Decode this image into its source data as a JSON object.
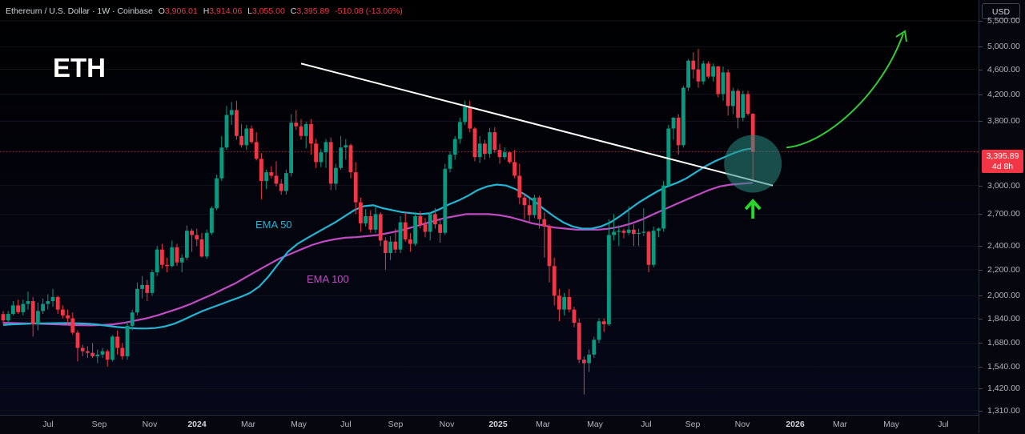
{
  "header": {
    "symbol": "Ethereum / U.S. Dollar · 1W · Coinbase",
    "open_key": "O",
    "open": "3,906.01",
    "high_key": "H",
    "high": "3,914.06",
    "low_key": "L",
    "low": "3,055.00",
    "close_key": "C",
    "close": "3,395.89",
    "change": "-510.08 (-13.06%)"
  },
  "currency": "USD",
  "last_price": {
    "price": "3,395.89",
    "countdown": "4d 8h"
  },
  "colors": {
    "up": "#089981",
    "down": "#f23645",
    "ema50": "#22b5d4",
    "ema100": "#c24bc4",
    "trendline": "#ffffff",
    "arrow_up": "#2bd62b",
    "arrow_curve": "#36c936",
    "highlight": "#2a8a80"
  },
  "chart_data": {
    "type": "candlestick",
    "title": "ETH",
    "symbol": "Ethereum / U.S. Dollar",
    "interval": "1W",
    "exchange": "Coinbase",
    "y_scale": "log",
    "ylim": [
      1290,
      5800
    ],
    "y_ticks": [
      5500,
      5000,
      4600,
      4200,
      3800,
      3400,
      3000,
      2700,
      2400,
      2200,
      2000,
      1840,
      1680,
      1540,
      1420,
      1310
    ],
    "y_tick_labels": [
      "5,500.00",
      "5,000.00",
      "4,600.00",
      "4,200.00",
      "3,800.00",
      "",
      "3,000.00",
      "2,700.00",
      "2,400.00",
      "2,200.00",
      "2,000.00",
      "1,840.00",
      "1,680.00",
      "1,540.00",
      "1,420.00",
      "1,310.00"
    ],
    "x_ticks": [
      {
        "label": "Jul",
        "bold": false
      },
      {
        "label": "Sep",
        "bold": false
      },
      {
        "label": "Nov",
        "bold": false
      },
      {
        "label": "2024",
        "bold": true
      },
      {
        "label": "Mar",
        "bold": false
      },
      {
        "label": "May",
        "bold": false
      },
      {
        "label": "Jul",
        "bold": false
      },
      {
        "label": "Sep",
        "bold": false
      },
      {
        "label": "Nov",
        "bold": false
      },
      {
        "label": "2025",
        "bold": true
      },
      {
        "label": "Mar",
        "bold": false
      },
      {
        "label": "May",
        "bold": false
      },
      {
        "label": "Jul",
        "bold": false
      },
      {
        "label": "Sep",
        "bold": false
      },
      {
        "label": "Nov",
        "bold": false
      },
      {
        "label": "2026",
        "bold": true
      },
      {
        "label": "Mar",
        "bold": false
      },
      {
        "label": "May",
        "bold": false
      },
      {
        "label": "Jul",
        "bold": false
      }
    ],
    "candles": [
      [
        1869,
        1890,
        1800,
        1826
      ],
      [
        1826,
        1890,
        1800,
        1870
      ],
      [
        1870,
        1960,
        1860,
        1930
      ],
      [
        1930,
        1970,
        1870,
        1882
      ],
      [
        1882,
        1970,
        1860,
        1940
      ],
      [
        1940,
        2030,
        1900,
        1960
      ],
      [
        1960,
        1990,
        1720,
        1800
      ],
      [
        1800,
        1950,
        1760,
        1890
      ],
      [
        1890,
        1980,
        1870,
        1940
      ],
      [
        1940,
        2010,
        1900,
        1960
      ],
      [
        1960,
        2050,
        1920,
        1990
      ],
      [
        1990,
        2000,
        1870,
        1900
      ],
      [
        1900,
        1930,
        1840,
        1860
      ],
      [
        1860,
        1900,
        1800,
        1840
      ],
      [
        1840,
        1880,
        1730,
        1745
      ],
      [
        1745,
        1760,
        1570,
        1650
      ],
      [
        1650,
        1670,
        1600,
        1630
      ],
      [
        1630,
        1660,
        1590,
        1620
      ],
      [
        1620,
        1680,
        1590,
        1600
      ],
      [
        1600,
        1640,
        1560,
        1610
      ],
      [
        1610,
        1650,
        1590,
        1630
      ],
      [
        1630,
        1640,
        1540,
        1580
      ],
      [
        1580,
        1730,
        1570,
        1720
      ],
      [
        1720,
        1760,
        1610,
        1650
      ],
      [
        1650,
        1680,
        1580,
        1600
      ],
      [
        1600,
        1820,
        1580,
        1790
      ],
      [
        1790,
        1900,
        1760,
        1880
      ],
      [
        1880,
        2100,
        1860,
        2050
      ],
      [
        2050,
        2150,
        1980,
        2080
      ],
      [
        2080,
        2120,
        1960,
        2020
      ],
      [
        2020,
        2200,
        2000,
        2180
      ],
      [
        2180,
        2400,
        2150,
        2370
      ],
      [
        2370,
        2420,
        2210,
        2240
      ],
      [
        2240,
        2300,
        2180,
        2230
      ],
      [
        2230,
        2450,
        2220,
        2390
      ],
      [
        2390,
        2420,
        2230,
        2260
      ],
      [
        2260,
        2330,
        2180,
        2300
      ],
      [
        2300,
        2590,
        2280,
        2540
      ],
      [
        2540,
        2560,
        2350,
        2500
      ],
      [
        2500,
        2560,
        2400,
        2460
      ],
      [
        2460,
        2520,
        2300,
        2310
      ],
      [
        2310,
        2550,
        2290,
        2520
      ],
      [
        2520,
        2780,
        2500,
        2760
      ],
      [
        2760,
        3120,
        2740,
        3080
      ],
      [
        3080,
        3600,
        3050,
        3450
      ],
      [
        3450,
        4020,
        3420,
        3890
      ],
      [
        3890,
        4080,
        3750,
        3960
      ],
      [
        3960,
        4100,
        3550,
        3600
      ],
      [
        3600,
        3760,
        3450,
        3480
      ],
      [
        3480,
        3750,
        3420,
        3700
      ],
      [
        3700,
        3740,
        3500,
        3520
      ],
      [
        3520,
        3650,
        3290,
        3310
      ],
      [
        3310,
        3380,
        2850,
        3050
      ],
      [
        3050,
        3180,
        2960,
        3150
      ],
      [
        3150,
        3220,
        3080,
        3110
      ],
      [
        3110,
        3280,
        2990,
        3020
      ],
      [
        3020,
        3070,
        2900,
        2940
      ],
      [
        2940,
        3180,
        2900,
        3140
      ],
      [
        3140,
        3900,
        3100,
        3780
      ],
      [
        3780,
        3960,
        3680,
        3730
      ],
      [
        3730,
        3830,
        3550,
        3600
      ],
      [
        3600,
        3790,
        3440,
        3760
      ],
      [
        3760,
        3830,
        3360,
        3500
      ],
      [
        3500,
        3560,
        3200,
        3270
      ],
      [
        3270,
        3430,
        3210,
        3390
      ],
      [
        3390,
        3560,
        3200,
        3520
      ],
      [
        3520,
        3580,
        2950,
        3020
      ],
      [
        3020,
        3250,
        2950,
        3200
      ],
      [
        3200,
        3600,
        3180,
        3450
      ],
      [
        3450,
        3560,
        3300,
        3480
      ],
      [
        3480,
        3500,
        3080,
        3150
      ],
      [
        3150,
        3270,
        2700,
        2820
      ],
      [
        2820,
        2870,
        2530,
        2610
      ],
      [
        2610,
        2750,
        2580,
        2680
      ],
      [
        2680,
        2740,
        2520,
        2550
      ],
      [
        2550,
        2780,
        2520,
        2700
      ],
      [
        2700,
        2720,
        2400,
        2450
      ],
      [
        2450,
        2480,
        2200,
        2340
      ],
      [
        2340,
        2490,
        2280,
        2440
      ],
      [
        2440,
        2560,
        2340,
        2370
      ],
      [
        2370,
        2680,
        2340,
        2620
      ],
      [
        2620,
        2720,
        2440,
        2460
      ],
      [
        2460,
        2520,
        2350,
        2420
      ],
      [
        2420,
        2720,
        2400,
        2680
      ],
      [
        2680,
        2730,
        2560,
        2600
      ],
      [
        2600,
        2660,
        2480,
        2530
      ],
      [
        2530,
        2720,
        2450,
        2700
      ],
      [
        2700,
        2760,
        2560,
        2600
      ],
      [
        2600,
        2660,
        2430,
        2520
      ],
      [
        2520,
        3250,
        2500,
        3190
      ],
      [
        3190,
        3400,
        3150,
        3360
      ],
      [
        3360,
        3600,
        3300,
        3560
      ],
      [
        3560,
        3850,
        3500,
        3790
      ],
      [
        3790,
        4100,
        3750,
        4000
      ],
      [
        4000,
        4100,
        3650,
        3700
      ],
      [
        3700,
        3720,
        3280,
        3330
      ],
      [
        3330,
        3600,
        3260,
        3500
      ],
      [
        3500,
        3550,
        3300,
        3370
      ],
      [
        3370,
        3710,
        3320,
        3650
      ],
      [
        3650,
        3720,
        3380,
        3420
      ],
      [
        3420,
        3500,
        3250,
        3330
      ],
      [
        3330,
        3450,
        3300,
        3390
      ],
      [
        3390,
        3400,
        3250,
        3270
      ],
      [
        3270,
        3420,
        3080,
        3110
      ],
      [
        3110,
        3250,
        2800,
        2870
      ],
      [
        2870,
        2920,
        2650,
        2790
      ],
      [
        2790,
        2860,
        2620,
        2690
      ],
      [
        2690,
        2900,
        2660,
        2870
      ],
      [
        2870,
        2890,
        2560,
        2650
      ],
      [
        2650,
        2720,
        2300,
        2580
      ],
      [
        2580,
        2600,
        2100,
        2230
      ],
      [
        2230,
        2300,
        1930,
        2000
      ],
      [
        2000,
        2050,
        1820,
        1900
      ],
      [
        1900,
        2020,
        1860,
        1990
      ],
      [
        1990,
        2050,
        1880,
        1900
      ],
      [
        1900,
        1920,
        1780,
        1810
      ],
      [
        1810,
        1840,
        1560,
        1580
      ],
      [
        1580,
        1600,
        1390,
        1560
      ],
      [
        1560,
        1640,
        1510,
        1610
      ],
      [
        1610,
        1720,
        1590,
        1700
      ],
      [
        1700,
        1840,
        1680,
        1820
      ],
      [
        1820,
        1840,
        1750,
        1800
      ],
      [
        1800,
        2650,
        1790,
        2500
      ],
      [
        2500,
        2700,
        2450,
        2530
      ],
      [
        2530,
        2590,
        2400,
        2540
      ],
      [
        2540,
        2560,
        2470,
        2520
      ],
      [
        2520,
        2780,
        2500,
        2550
      ],
      [
        2550,
        2600,
        2400,
        2510
      ],
      [
        2510,
        2560,
        2400,
        2520
      ],
      [
        2520,
        2760,
        2490,
        2530
      ],
      [
        2530,
        2540,
        2180,
        2240
      ],
      [
        2240,
        2580,
        2220,
        2540
      ],
      [
        2540,
        2570,
        2480,
        2560
      ],
      [
        2560,
        3050,
        2530,
        3000
      ],
      [
        3000,
        3750,
        2980,
        3700
      ],
      [
        3700,
        3860,
        3550,
        3850
      ],
      [
        3850,
        3900,
        3360,
        3480
      ],
      [
        3480,
        4330,
        3450,
        4300
      ],
      [
        4300,
        4780,
        4250,
        4750
      ],
      [
        4750,
        4900,
        4450,
        4600
      ],
      [
        4600,
        4960,
        4300,
        4400
      ],
      [
        4400,
        4750,
        4350,
        4700
      ],
      [
        4700,
        4740,
        4450,
        4480
      ],
      [
        4480,
        4700,
        4400,
        4650
      ],
      [
        4650,
        4660,
        4150,
        4200
      ],
      [
        4200,
        4650,
        4100,
        4550
      ],
      [
        4550,
        4600,
        3880,
        4020
      ],
      [
        4020,
        4300,
        3900,
        4250
      ],
      [
        4250,
        4280,
        3700,
        3850
      ],
      [
        3850,
        4250,
        3800,
        4200
      ],
      [
        4200,
        4250,
        3880,
        3906
      ],
      [
        3906.01,
        3914.06,
        3055.0,
        3395.89
      ]
    ],
    "ema50": [
      1795,
      1800,
      1802,
      1805,
      1806,
      1807,
      1808,
      1808,
      1806,
      1803,
      1798,
      1790,
      1782,
      1777,
      1773,
      1772,
      1775,
      1785,
      1803,
      1830,
      1860,
      1890,
      1915,
      1940,
      1965,
      1990,
      2020,
      2070,
      2150,
      2250,
      2350,
      2420,
      2470,
      2520,
      2570,
      2620,
      2680,
      2740,
      2780,
      2790,
      2760,
      2740,
      2720,
      2710,
      2700,
      2710,
      2750,
      2800,
      2840,
      2890,
      2950,
      2990,
      3010,
      3000,
      2960,
      2900,
      2830,
      2750,
      2680,
      2620,
      2580,
      2560,
      2560,
      2580,
      2620,
      2680,
      2750,
      2820,
      2880,
      2940,
      2990,
      3030,
      3080,
      3150,
      3220,
      3280,
      3330,
      3380,
      3420,
      3440
    ],
    "ema100": [
      1810,
      1808,
      1806,
      1804,
      1802,
      1799,
      1796,
      1794,
      1793,
      1795,
      1800,
      1810,
      1825,
      1840,
      1860,
      1885,
      1910,
      1940,
      1975,
      2010,
      2050,
      2090,
      2140,
      2190,
      2240,
      2290,
      2330,
      2370,
      2410,
      2440,
      2460,
      2475,
      2480,
      2490,
      2500,
      2520,
      2540,
      2570,
      2600,
      2630,
      2660,
      2680,
      2700,
      2700,
      2700,
      2690,
      2670,
      2640,
      2610,
      2590,
      2570,
      2560,
      2550,
      2550,
      2550,
      2560,
      2580,
      2610,
      2650,
      2700,
      2750,
      2800,
      2850,
      2900,
      2950,
      2990,
      3010,
      3020,
      3030
    ],
    "trendline": {
      "from": {
        "bar": 60,
        "price": 4700
      },
      "to": {
        "bar": 155,
        "price": 3000
      }
    }
  },
  "overlays": {
    "ema50_label": "EMA 50",
    "ema100_label": "EMA 100"
  }
}
